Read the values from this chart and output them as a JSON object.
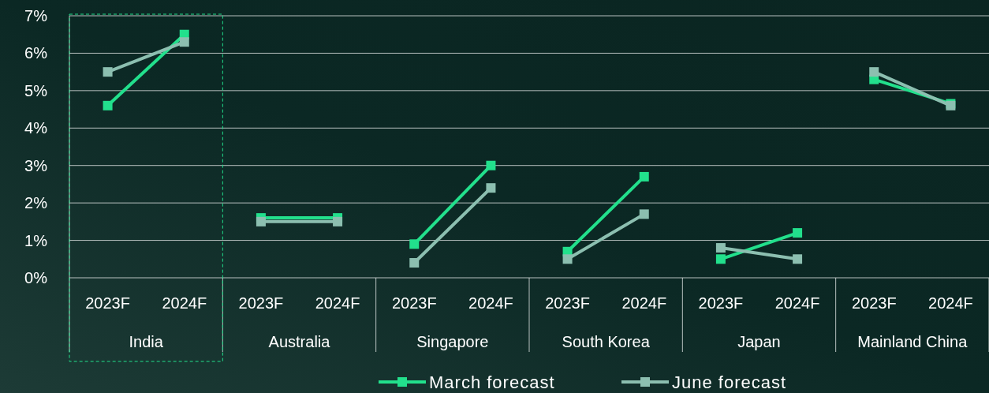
{
  "chart_data": {
    "type": "line",
    "categories": [
      "2023F",
      "2024F",
      "2023F",
      "2024F",
      "2023F",
      "2024F",
      "2023F",
      "2024F",
      "2023F",
      "2024F",
      "2023F",
      "2024F"
    ],
    "series": [
      {
        "name": "March forecast",
        "color": "#22e08c",
        "values": [
          4.6,
          6.5,
          1.6,
          1.6,
          0.9,
          3.0,
          0.7,
          2.7,
          0.5,
          1.2,
          5.3,
          4.65
        ]
      },
      {
        "name": "June forecast",
        "color": "#8cbfb0",
        "values": [
          5.5,
          6.3,
          1.5,
          1.5,
          0.4,
          2.4,
          0.5,
          1.7,
          0.8,
          0.5,
          5.5,
          4.6
        ]
      }
    ],
    "annotations": [
      "India",
      "Australia",
      "Singapore",
      "South Korea",
      "Japan",
      "Mainland China"
    ],
    "ylim": [
      0,
      7
    ],
    "yticks": [
      {
        "value": 0,
        "label": "0%"
      },
      {
        "value": 1,
        "label": "1%"
      },
      {
        "value": 2,
        "label": "2%"
      },
      {
        "value": 3,
        "label": "3%"
      },
      {
        "value": 4,
        "label": "4%"
      },
      {
        "value": 5,
        "label": "5%"
      },
      {
        "value": 6,
        "label": "6%"
      },
      {
        "value": 7,
        "label": "7%"
      }
    ],
    "grid": "y",
    "legend": "bottom",
    "marker": "square",
    "line_style": "solid"
  }
}
